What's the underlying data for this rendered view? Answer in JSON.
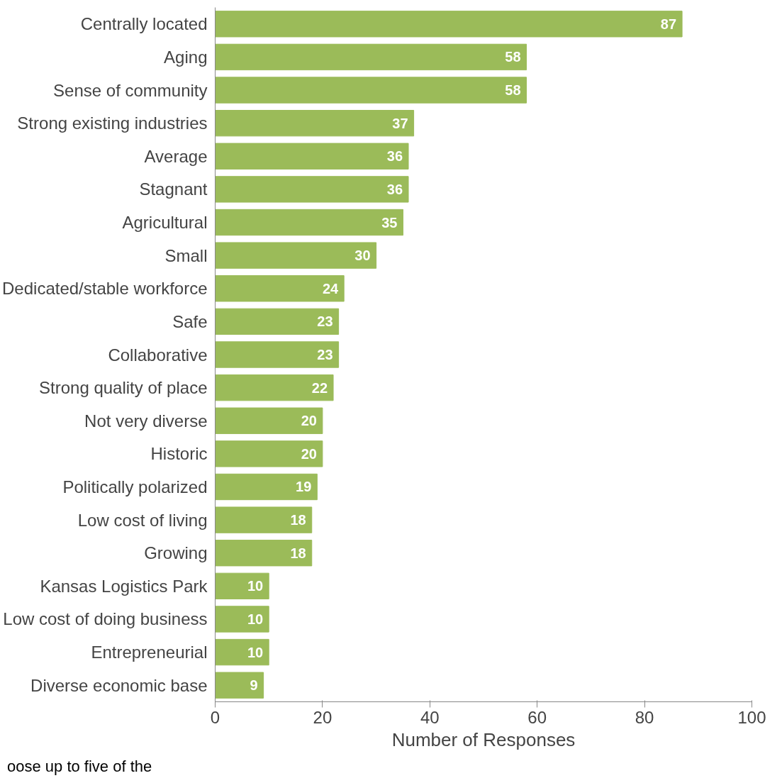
{
  "chart_data": {
    "type": "bar",
    "orientation": "horizontal",
    "xlabel": "Number of Responses",
    "categories": [
      "Centrally located",
      "Aging",
      "Sense of community",
      "Strong existing industries",
      "Average",
      "Stagnant",
      "Agricultural",
      "Small",
      "Dedicated/stable workforce",
      "Safe",
      "Collaborative",
      "Strong quality of place",
      "Not very diverse",
      "Historic",
      "Politically polarized",
      "Low cost of living",
      "Growing",
      "Kansas Logistics Park",
      "Low cost of doing business",
      "Entrepreneurial",
      "Diverse economic base"
    ],
    "values": [
      87,
      58,
      58,
      37,
      36,
      36,
      35,
      30,
      24,
      23,
      23,
      22,
      20,
      20,
      19,
      18,
      18,
      10,
      10,
      10,
      9
    ],
    "color": "#9bbb59",
    "xlim": [
      0,
      100
    ],
    "xticks": [
      0,
      20,
      40,
      60,
      80,
      100
    ],
    "grid": false,
    "data_labels": true,
    "annotations": [
      "oose up to five of the"
    ]
  }
}
